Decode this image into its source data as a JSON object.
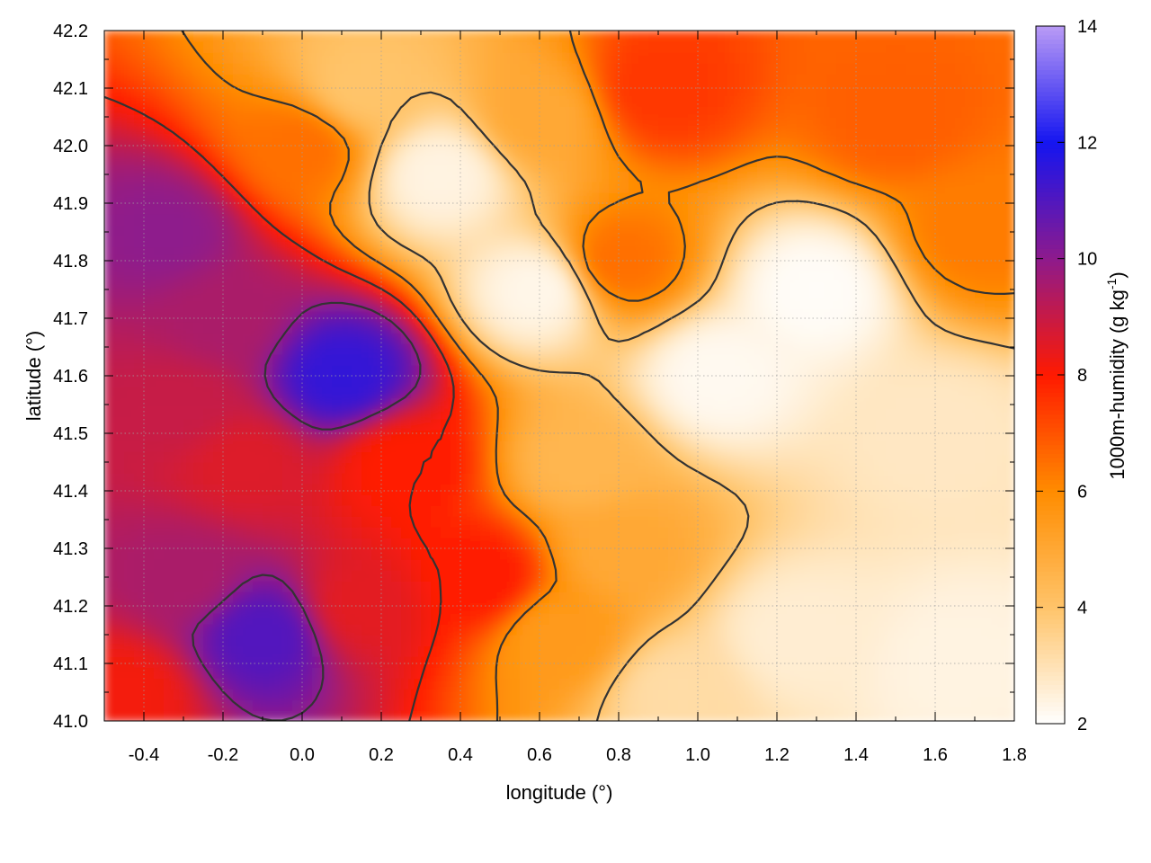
{
  "chart_data": {
    "type": "heatmap",
    "title": "",
    "xlabel": "longitude (°)",
    "ylabel": "latitude (°)",
    "colorbar_label_main": "1000m-humidity (g kg",
    "colorbar_label_sup": "-1",
    "colorbar_label_end": ")",
    "xlim": [
      -0.5,
      1.8
    ],
    "ylim": [
      41.0,
      42.2
    ],
    "x_ticks": [
      "-0.4",
      "-0.2",
      "0.0",
      "0.2",
      "0.4",
      "0.6",
      "0.8",
      "1.0",
      "1.2",
      "1.4",
      "1.6",
      "1.8"
    ],
    "x_tick_values": [
      -0.4,
      -0.2,
      0.0,
      0.2,
      0.4,
      0.6,
      0.8,
      1.0,
      1.2,
      1.4,
      1.6,
      1.8
    ],
    "y_ticks": [
      "41.0",
      "41.1",
      "41.2",
      "41.3",
      "41.4",
      "41.5",
      "41.6",
      "41.7",
      "41.8",
      "41.9",
      "42.0",
      "42.1",
      "42.2"
    ],
    "y_tick_values": [
      41.0,
      41.1,
      41.2,
      41.3,
      41.4,
      41.5,
      41.6,
      41.7,
      41.8,
      41.9,
      42.0,
      42.1,
      42.2
    ],
    "colorbar_range": [
      2,
      14
    ],
    "colorbar_ticks": [
      "2",
      "4",
      "6",
      "8",
      "10",
      "12",
      "14"
    ],
    "colorbar_tick_values": [
      2,
      4,
      6,
      8,
      10,
      12,
      14
    ],
    "colorscale": [
      {
        "v": 2,
        "color": "#ffffff"
      },
      {
        "v": 4,
        "color": "#ffc46a"
      },
      {
        "v": 6,
        "color": "#ff8c00"
      },
      {
        "v": 8,
        "color": "#ff1a00"
      },
      {
        "v": 10,
        "color": "#8e1a8c"
      },
      {
        "v": 12,
        "color": "#1515f0"
      },
      {
        "v": 14,
        "color": "#b99af5"
      }
    ],
    "grid": true,
    "legend": "colorbar-right",
    "field_centers": [
      {
        "lon": -0.35,
        "lat": 41.85,
        "value": 10.0
      },
      {
        "lon": -0.2,
        "lat": 41.7,
        "value": 9.5
      },
      {
        "lon": -0.3,
        "lat": 41.55,
        "value": 9.0
      },
      {
        "lon": -0.15,
        "lat": 41.45,
        "value": 8.6
      },
      {
        "lon": -0.1,
        "lat": 41.15,
        "value": 11.0
      },
      {
        "lon": -0.3,
        "lat": 41.25,
        "value": 9.5
      },
      {
        "lon": 0.1,
        "lat": 41.6,
        "value": 11.5
      },
      {
        "lon": 0.25,
        "lat": 41.45,
        "value": 8.0
      },
      {
        "lon": 0.45,
        "lat": 41.25,
        "value": 8.0
      },
      {
        "lon": -0.45,
        "lat": 41.05,
        "value": 8.2
      },
      {
        "lon": 0.0,
        "lat": 42.0,
        "value": 6.5
      },
      {
        "lon": 0.15,
        "lat": 42.1,
        "value": 4.0
      },
      {
        "lon": 0.35,
        "lat": 41.95,
        "value": 2.4
      },
      {
        "lon": 0.6,
        "lat": 41.75,
        "value": 2.3
      },
      {
        "lon": 0.8,
        "lat": 41.8,
        "value": 6.5
      },
      {
        "lon": 0.9,
        "lat": 42.1,
        "value": 7.5
      },
      {
        "lon": 1.05,
        "lat": 41.6,
        "value": 2.2
      },
      {
        "lon": 1.3,
        "lat": 41.75,
        "value": 2.1
      },
      {
        "lon": 1.25,
        "lat": 41.15,
        "value": 2.6
      },
      {
        "lon": 0.8,
        "lat": 41.3,
        "value": 5.0
      },
      {
        "lon": 0.7,
        "lat": 41.45,
        "value": 4.5
      },
      {
        "lon": 1.5,
        "lat": 42.05,
        "value": 6.8
      },
      {
        "lon": 1.7,
        "lat": 41.85,
        "value": 6.3
      },
      {
        "lon": 1.6,
        "lat": 41.5,
        "value": 2.8
      },
      {
        "lon": 1.65,
        "lat": 41.1,
        "value": 2.4
      },
      {
        "lon": 0.6,
        "lat": 42.05,
        "value": 5.0
      },
      {
        "lon": 0.95,
        "lat": 41.05,
        "value": 3.2
      },
      {
        "lon": 0.65,
        "lat": 41.15,
        "value": 5.5
      },
      {
        "lon": 0.15,
        "lat": 41.2,
        "value": 8.5
      }
    ],
    "contour_levels": [
      4,
      6,
      8,
      10
    ]
  }
}
